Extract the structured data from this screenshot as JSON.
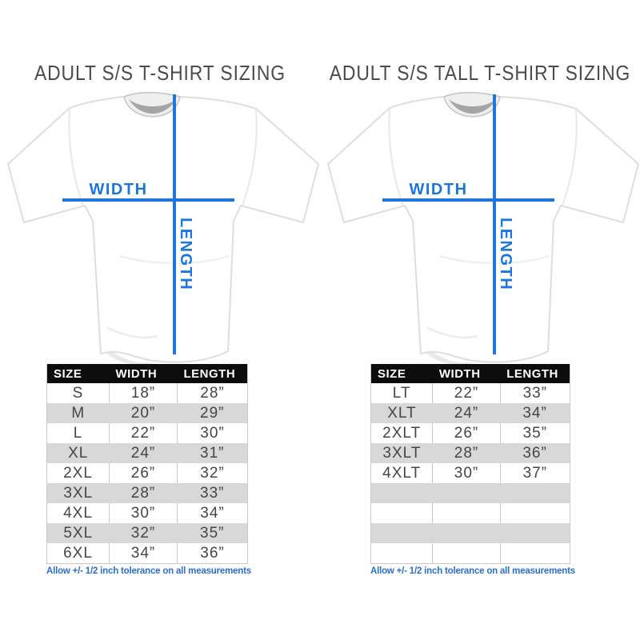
{
  "colors": {
    "accent_blue": "#1e76dd",
    "footnote_blue": "#2b6fce",
    "table_header_bg": "#0c0c0c",
    "table_header_text": "#ffffff",
    "table_alt_row_bg": "#d8d8d8",
    "cell_text": "#454545",
    "title_text": "#4b4b4b",
    "table_border": "#c9c9c9"
  },
  "panels": [
    {
      "title": "ADULT S/S T-SHIRT SIZING",
      "shirt_diagram": {
        "width_label": "WIDTH",
        "length_label": "LENGTH"
      },
      "size_table": {
        "headers": [
          "SIZE",
          "WIDTH",
          "LENGTH"
        ],
        "rows": [
          [
            "S",
            "18”",
            "28”"
          ],
          [
            "M",
            "20”",
            "29”"
          ],
          [
            "L",
            "22”",
            "30”"
          ],
          [
            "XL",
            "24”",
            "31”"
          ],
          [
            "2XL",
            "26”",
            "32”"
          ],
          [
            "3XL",
            "28”",
            "33”"
          ],
          [
            "4XL",
            "30”",
            "34”"
          ],
          [
            "5XL",
            "32”",
            "35”"
          ],
          [
            "6XL",
            "34”",
            "36”"
          ]
        ],
        "empty_rows": 0
      },
      "footnote": "Allow +/- 1/2 inch tolerance on all measurements"
    },
    {
      "title": "ADULT S/S TALL T-SHIRT SIZING",
      "shirt_diagram": {
        "width_label": "WIDTH",
        "length_label": "LENGTH"
      },
      "size_table": {
        "headers": [
          "SIZE",
          "WIDTH",
          "LENGTH"
        ],
        "rows": [
          [
            "LT",
            "22”",
            "33”"
          ],
          [
            "XLT",
            "24”",
            "34”"
          ],
          [
            "2XLT",
            "26”",
            "35”"
          ],
          [
            "3XLT",
            "28”",
            "36”"
          ],
          [
            "4XLT",
            "30”",
            "37”"
          ]
        ],
        "empty_rows": 4
      },
      "footnote": "Allow +/- 1/2 inch tolerance on all measurements"
    }
  ]
}
